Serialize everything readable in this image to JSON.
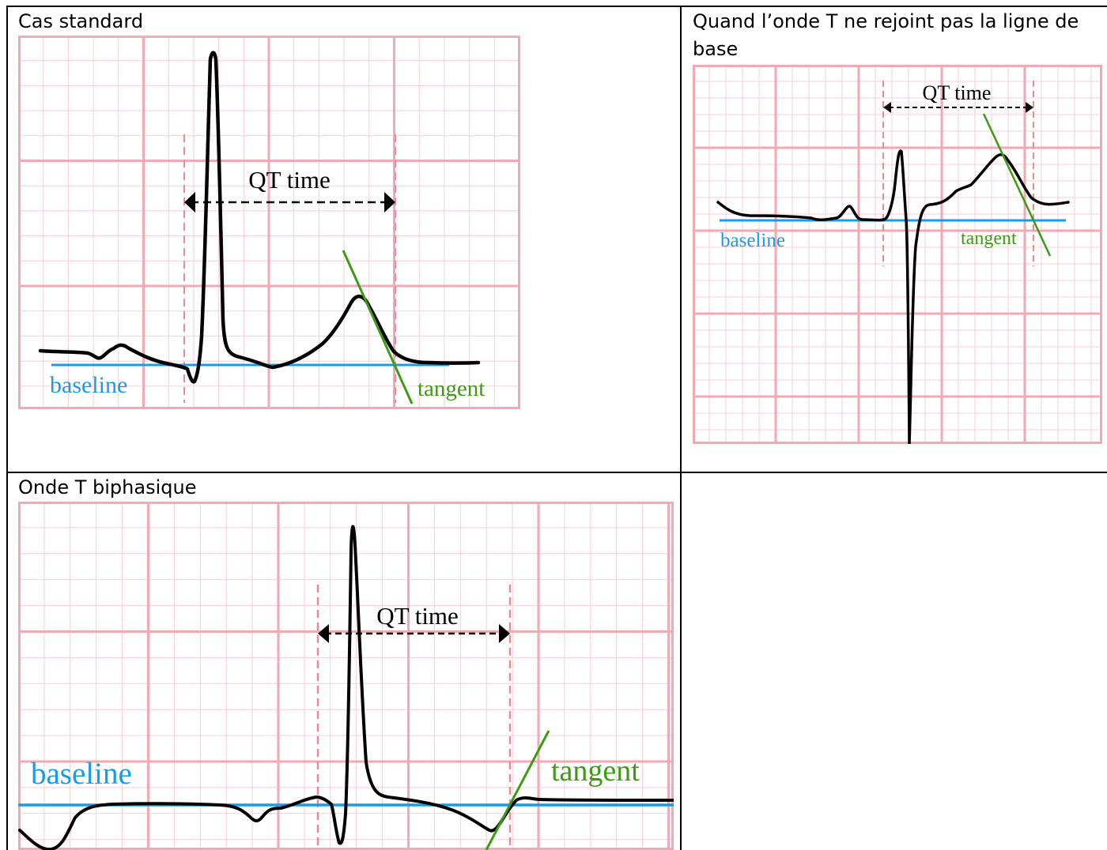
{
  "cells": [
    {
      "title": "Cas standard",
      "labels": {
        "qt": "QT time",
        "baseline": "baseline",
        "tangent": "tangent"
      }
    },
    {
      "title": "Quand l’onde T ne rejoint pas la ligne de base",
      "labels": {
        "qt": "QT time",
        "baseline": "baseline",
        "tangent": "tangent"
      }
    },
    {
      "title": "Onde T biphasique",
      "labels": {
        "qt": "QT time",
        "baseline": "baseline",
        "tangent": "tangent"
      }
    }
  ],
  "colors": {
    "grid_minor": "#f7cdd3",
    "grid_major": "#f1aab3",
    "trace": "#000000",
    "baseline": "#1a9be6",
    "tangent": "#3c9b14",
    "marker": "#ee8a92",
    "text": "#000000"
  }
}
